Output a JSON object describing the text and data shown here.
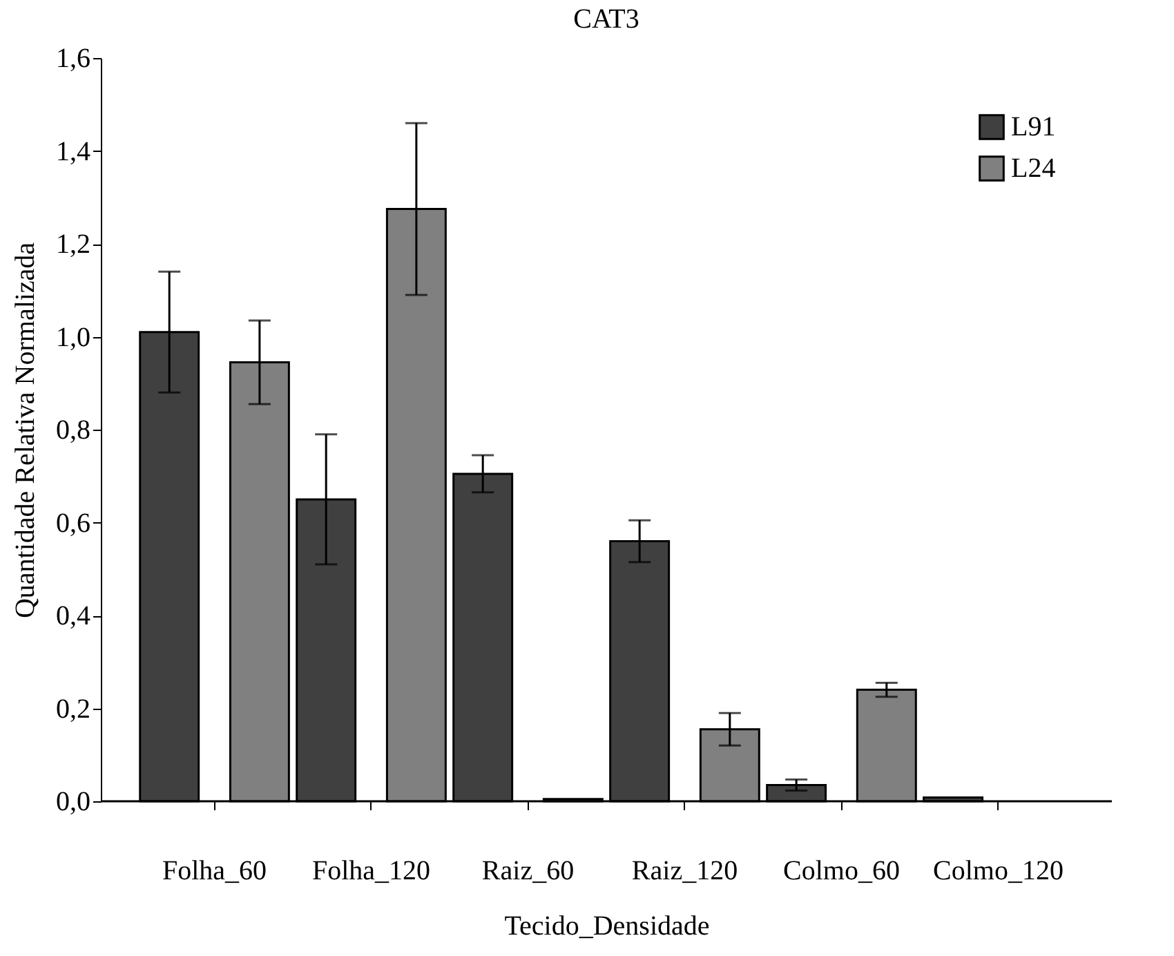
{
  "chart_data": {
    "type": "bar",
    "title": "CAT3",
    "xlabel": "Tecido_Densidade",
    "ylabel": "Quantidade Relativa Normalizada",
    "categories": [
      "Folha_60",
      "Folha_120",
      "Raiz_60",
      "Raiz_120",
      "Colmo_60",
      "Colmo_120"
    ],
    "series": [
      {
        "name": "L91",
        "color": "#404040",
        "values": [
          1.01,
          0.65,
          0.705,
          0.56,
          0.035,
          0.008
        ],
        "errors": [
          0.13,
          0.14,
          0.04,
          0.045,
          0.012,
          null
        ]
      },
      {
        "name": "L24",
        "color": "#808080",
        "values": [
          0.945,
          1.275,
          0.005,
          0.155,
          0.24,
          null
        ],
        "errors": [
          0.09,
          0.185,
          null,
          0.035,
          0.015,
          null
        ]
      }
    ],
    "ylim": [
      0,
      1.6
    ],
    "yticks": [
      {
        "value": 0,
        "label": "0,0"
      },
      {
        "value": 0.2,
        "label": "0,2"
      },
      {
        "value": 0.4,
        "label": "0,4"
      },
      {
        "value": 0.6,
        "label": "0,6"
      },
      {
        "value": 0.8,
        "label": "0,8"
      },
      {
        "value": 1.0,
        "label": "1,0"
      },
      {
        "value": 1.2,
        "label": "1,2"
      },
      {
        "value": 1.4,
        "label": "1,4"
      },
      {
        "value": 1.6,
        "label": "1,6"
      }
    ],
    "grid": false,
    "legend": "top right"
  }
}
